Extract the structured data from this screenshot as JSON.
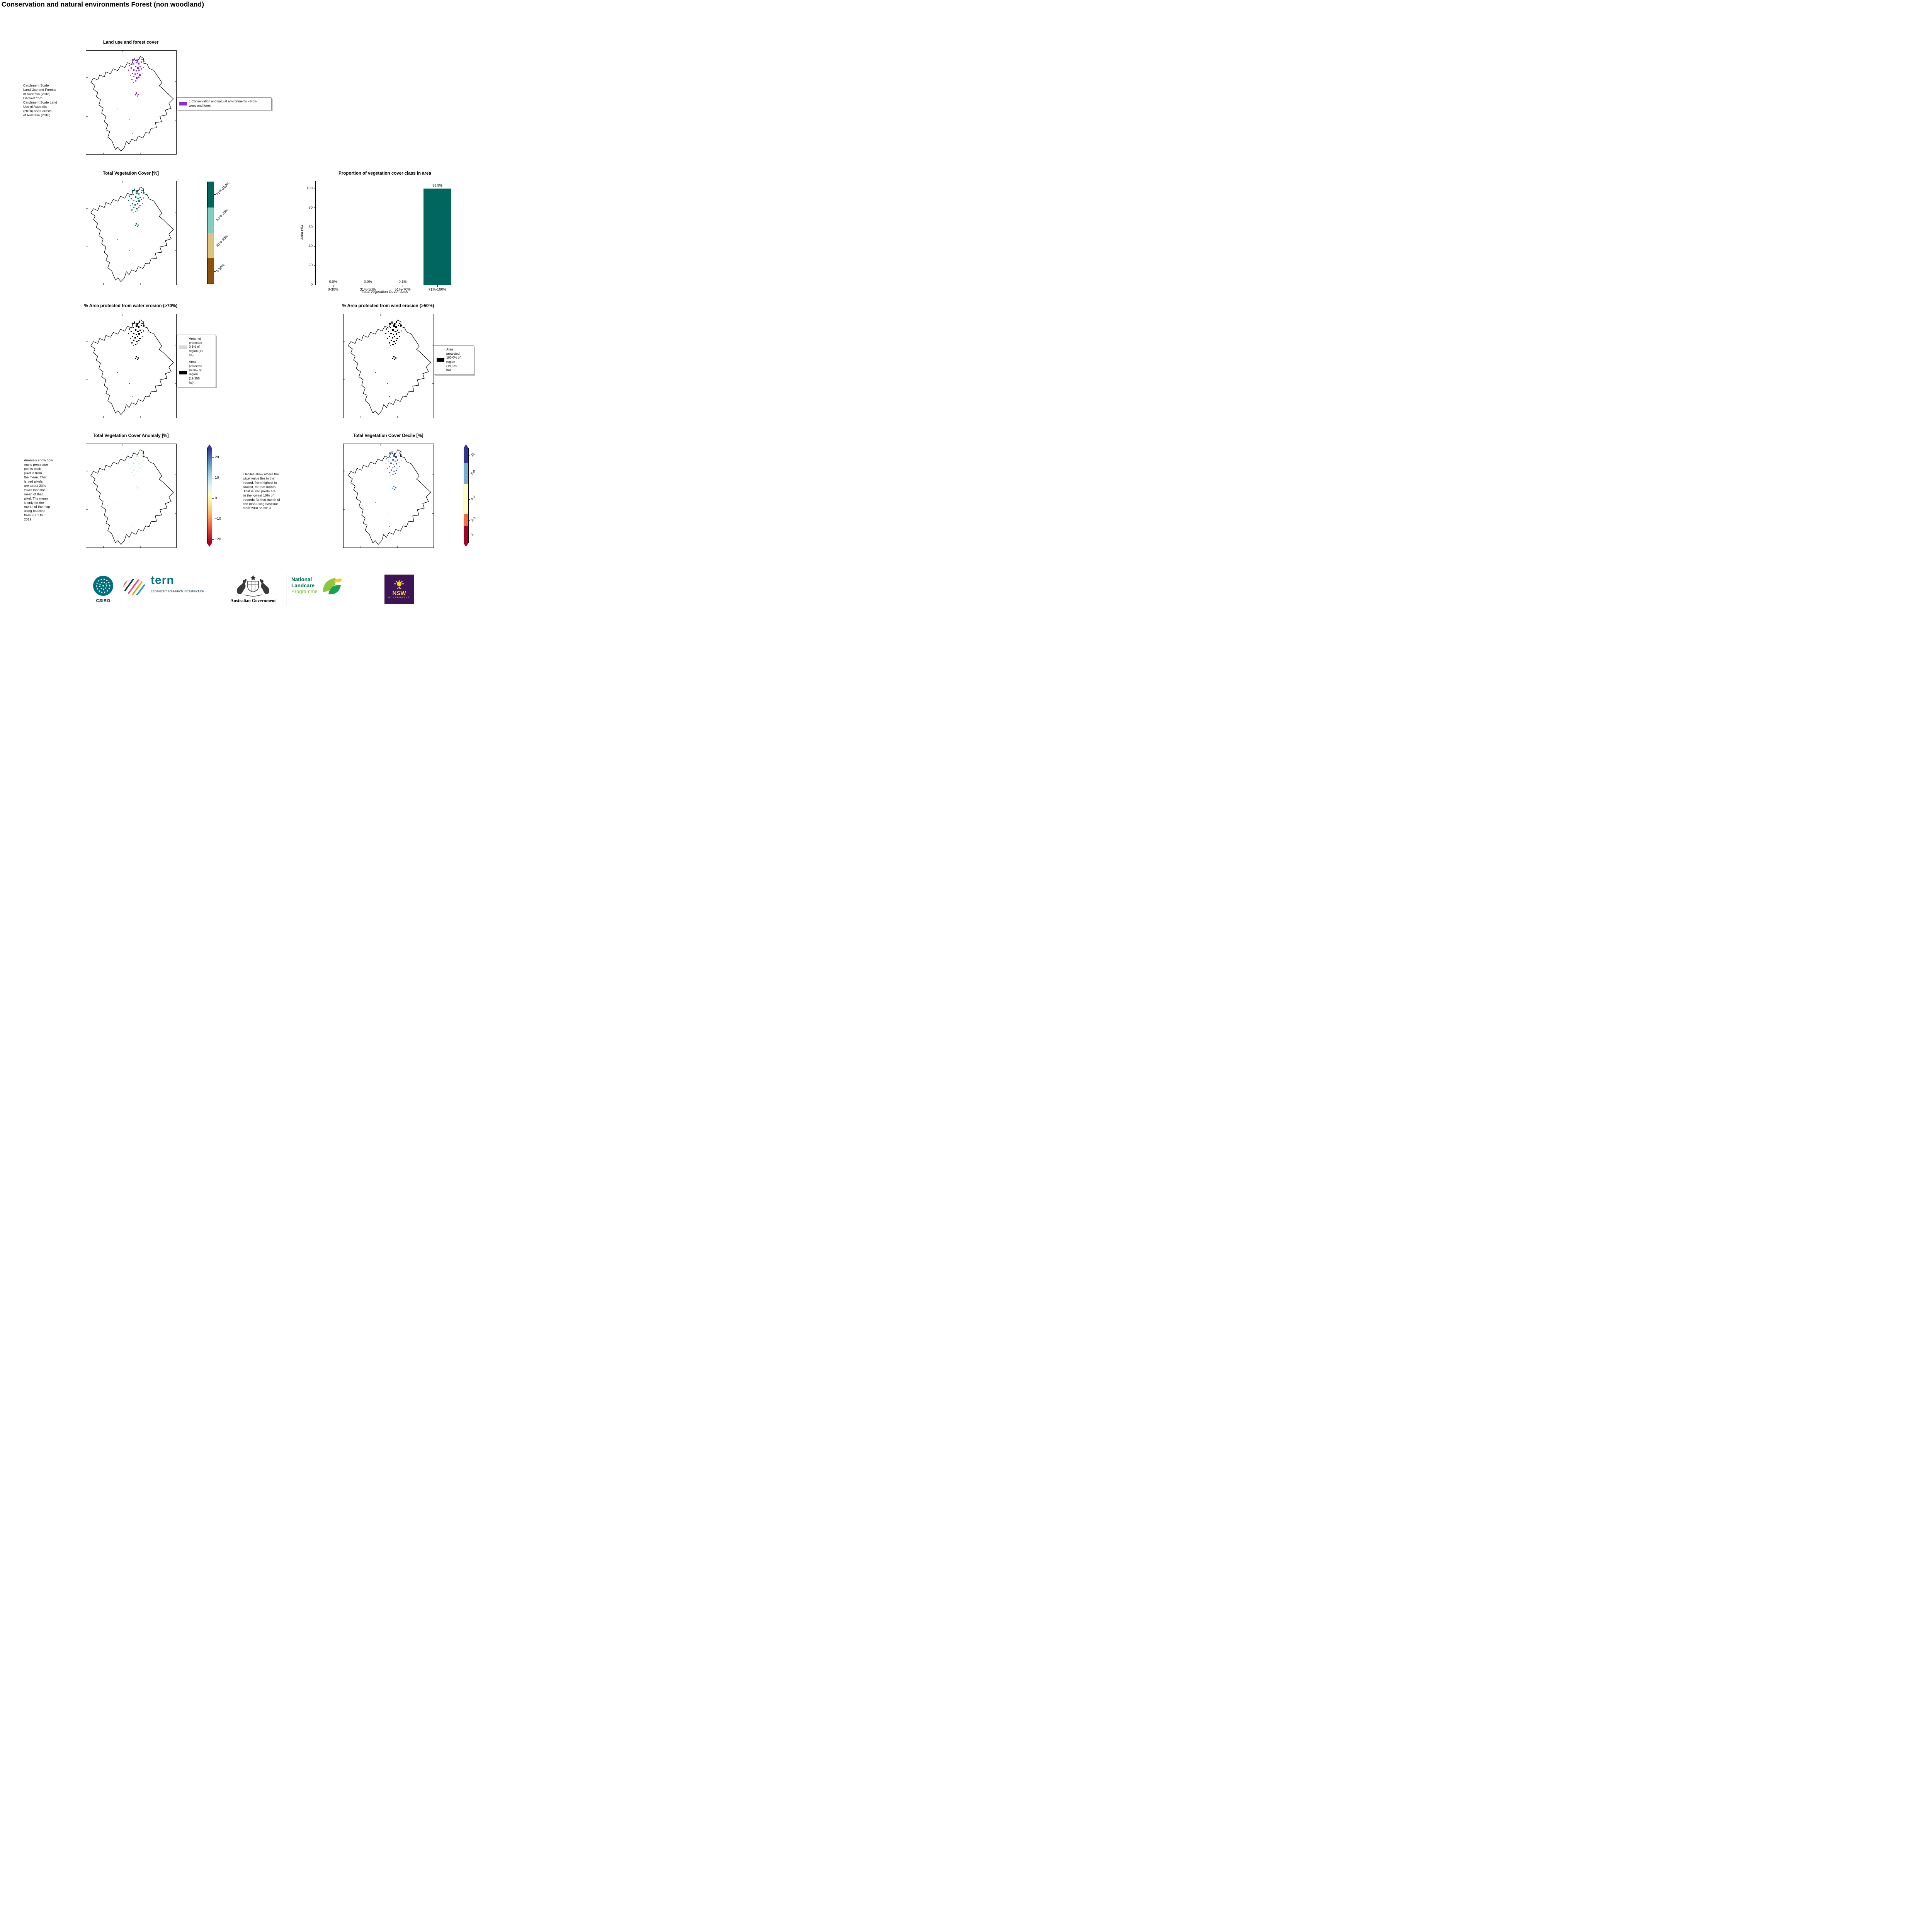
{
  "page_title": "Conservation and natural environments Forest (non woodland)",
  "panels": {
    "landuse": {
      "title": "Land use and forest cover",
      "caption": " Catchment Scale\nLand Use and Forests\nof Australia (2018)\nDerived from\nCatchment Scale Land\nUse of Australia\n(2018) and Forests\nof Australia (2018)",
      "legend_items": [
        {
          "label": "1 Conservation and natural environments – Non-\nwoodland forest",
          "color": "#8c2be2"
        }
      ],
      "map_palette": [
        "#8c2be2",
        "#9a49e6",
        "#7e22d6",
        "#8c2be2"
      ]
    },
    "veg_cover": {
      "title": "Total Vegetation Cover [%]",
      "colorbar": [
        {
          "label": "71%-100%",
          "color": "#01665e",
          "size": 25
        },
        {
          "label": "51%-70%",
          "color": "#80cdc1",
          "size": 25
        },
        {
          "label": "31%-50%",
          "color": "#dfc27d",
          "size": 25
        },
        {
          "label": "0-30%",
          "color": "#8c510a",
          "size": 25
        }
      ],
      "map_palette": [
        "#01665e",
        "#0b7a6d",
        "#01665e",
        "#35978f"
      ]
    },
    "water_erosion": {
      "title": "% Area protected from water erosion (>70%)",
      "legend_items": [
        {
          "label": "Area not\nprotected\n0.1% of\nregion (19\nha)",
          "color": "#d9d9d9"
        },
        {
          "label": "Area\nprotected\n99.9% of\nregion\n(19,355\nha)",
          "color": "#000000"
        }
      ],
      "map_palette": [
        "#000000"
      ]
    },
    "wind_erosion": {
      "title": "% Area protected from wind erosion (>50%)",
      "legend_items": [
        {
          "label": "Area\nprotected\n100.0% of\nregion\n(19,375\nha)",
          "color": "#000000"
        }
      ],
      "map_palette": [
        "#000000"
      ]
    },
    "anomaly": {
      "title": "Total Vegetation Cover Anomaly [%]",
      "caption": "Anomaly show how\nmany percetage\npoints each\npixel is from\nthe mean. That\nis, red pixels\nare about 20%\nlower than the\nmean of that\npixel. The mean\nis only for the\nmonth of the map\nusing baseline\nfrom 2001 to\n2019.",
      "colorbar_gradient": [
        "#313695",
        "#4575b4",
        "#74add1",
        "#abd9e9",
        "#e0f3f8",
        "#ffffbf",
        "#fee090",
        "#fdae61",
        "#f46d43",
        "#d73027",
        "#a50026"
      ],
      "colorbar_ticks": [
        "20",
        "10",
        "0",
        "−10",
        "−20"
      ],
      "map_palette": [
        "#cfe9f3",
        "#eef7fb",
        "#fdf8c6",
        "#d8eef6",
        "#bfe3ef"
      ]
    },
    "decile": {
      "title": "Total Vegetation Cover Decile [%]",
      "caption": "Deciles show where the\npixel value lies in the\nrecord, from highest to\nlowest, for that month.\nThat is, red pixels are\nin the lowest 10% of\nrecords for that month of\nthe map using baseline\nfrom 2001 to 2019.",
      "colorbar": [
        {
          "label": "10",
          "color": "#313695",
          "size": 16
        },
        {
          "label": "8-9",
          "color": "#74add1",
          "size": 22
        },
        {
          "label": "4-7",
          "color": "#ffffbf",
          "size": 32
        },
        {
          "label": "2-3",
          "color": "#f46d43",
          "size": 12
        },
        {
          "label": "1",
          "color": "#a50026",
          "size": 18
        }
      ],
      "map_palette": [
        "#4a69ad",
        "#7ba3d0",
        "#31489b",
        "#c3d4ea",
        "#5b8fc9"
      ]
    }
  },
  "chart_data": {
    "type": "bar",
    "title": "Proportion of vegetation cover class in area",
    "categories": [
      "0-30%",
      "31%-50%",
      "51%-70%",
      "71%-100%"
    ],
    "values": [
      0.0,
      0.0,
      0.1,
      99.9
    ],
    "bar_labels": [
      "0.0%",
      "0.0%",
      "0.1%",
      "99.9%"
    ],
    "xlabel": "Total Vegetation Cover class",
    "ylabel": "Area (%)",
    "ylim": [
      0,
      107
    ],
    "yticks": [
      0,
      20,
      40,
      60,
      80,
      100
    ],
    "bar_color": "#01665e",
    "grid": false,
    "legend_position": "none"
  },
  "footer": {
    "csiro": {
      "label": "CSIRO",
      "circle_color": "#00707d",
      "text_color": "#00313c"
    },
    "tern": {
      "label": "tern",
      "sub": "Ecosystem Research Infrastructure",
      "color": "#007580",
      "sub_color": "#123f4a"
    },
    "aus_gov": {
      "label": "Australian Government"
    },
    "landcare": {
      "line1": "National",
      "line2": "Landcare",
      "line3": "Programme",
      "dark": "#006747",
      "light": "#78be20",
      "leaf_green": "#009a44",
      "leaf_lime": "#8dc63f",
      "leaf_yellow": "#ffd100"
    },
    "nsw": {
      "label": "NSW",
      "sub": "GOVERNMENT",
      "bg": "#3d1455",
      "fg": "#ffd500"
    }
  }
}
